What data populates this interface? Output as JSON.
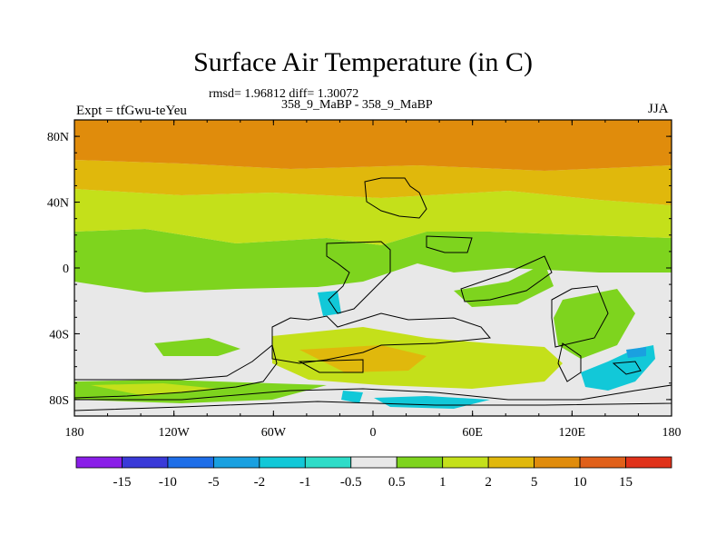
{
  "title": "Surface Air Temperature (in C)",
  "stats": "rmsd= 1.96812 diff= 1.30072",
  "subtitle": "358_9_MaBP - 358_9_MaBP",
  "expt": "Expt = tfGwu-teYeu",
  "season": "JJA",
  "lat_labels": [
    "80N",
    "40N",
    "0",
    "40S",
    "80S"
  ],
  "lon_labels": [
    "180",
    "120W",
    "60W",
    "0",
    "60E",
    "120E",
    "180"
  ],
  "colorbar": {
    "labels": [
      "-15",
      "-10",
      "-5",
      "-2",
      "-1",
      "-0.5",
      "0.5",
      "1",
      "2",
      "5",
      "10",
      "15"
    ],
    "colors": [
      "#8a1ee8",
      "#3a3ad8",
      "#1e6ee8",
      "#1aa0e0",
      "#12c8d8",
      "#2edcc8",
      "#e8e8e8",
      "#7ed41e",
      "#c4e01a",
      "#e0b80c",
      "#e08c0c",
      "#e0601a",
      "#e0321a"
    ]
  },
  "field_colors": {
    "neutral": "#e8e8e8",
    "warm_1": "#7ed41e",
    "warm_2": "#c4e01a",
    "warm_5": "#e0b80c",
    "warm_10": "#e08c0c",
    "cool_1": "#12c8d8",
    "cool_2": "#1aa0e0"
  }
}
